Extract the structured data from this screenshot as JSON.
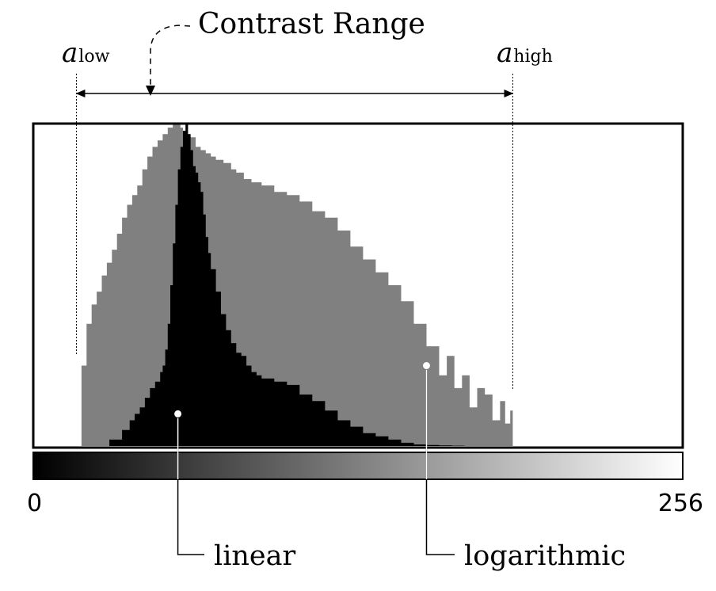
{
  "chart_data": {
    "type": "area",
    "title": "Contrast Range",
    "x_range": [
      0,
      256
    ],
    "xlabel": "",
    "ylabel": "",
    "tick_labels": [
      "0",
      "256"
    ],
    "range_labels": {
      "low": "a",
      "low_sub": "low",
      "high": "a",
      "high_sub": "high"
    },
    "contrast_range": {
      "a_low": 17,
      "a_high": 189
    },
    "grid": false,
    "colorbar": {
      "from": "#000000",
      "to": "#ffffff"
    },
    "series": [
      {
        "name": "logarithmic",
        "color": "#808080",
        "relative_to_max": true,
        "x": [
          17,
          19,
          21,
          23,
          25,
          27,
          29,
          31,
          33,
          35,
          37,
          39,
          41,
          43,
          45,
          47,
          49,
          51,
          53,
          55,
          57,
          58,
          59,
          60,
          62,
          64,
          66,
          68,
          70,
          72,
          75,
          78,
          80,
          83,
          86,
          90,
          95,
          100,
          105,
          110,
          115,
          120,
          125,
          130,
          135,
          140,
          145,
          150,
          155,
          160,
          163,
          166,
          169,
          172,
          175,
          178,
          181,
          184,
          186,
          188,
          189
        ],
        "y": [
          0,
          0.25,
          0.38,
          0.44,
          0.48,
          0.53,
          0.57,
          0.61,
          0.66,
          0.71,
          0.75,
          0.78,
          0.81,
          0.86,
          0.9,
          0.93,
          0.95,
          0.97,
          0.99,
          1.0,
          1.0,
          0.99,
          0.98,
          0.97,
          0.96,
          0.93,
          0.92,
          0.91,
          0.9,
          0.89,
          0.88,
          0.86,
          0.85,
          0.83,
          0.82,
          0.81,
          0.79,
          0.78,
          0.76,
          0.73,
          0.71,
          0.67,
          0.62,
          0.58,
          0.54,
          0.5,
          0.45,
          0.38,
          0.31,
          0.22,
          0.28,
          0.18,
          0.22,
          0.12,
          0.18,
          0.16,
          0.08,
          0.14,
          0.07,
          0.11,
          0.0
        ]
      },
      {
        "name": "linear",
        "color": "#000000",
        "relative_to_max": true,
        "x": [
          17,
          25,
          30,
          35,
          38,
          40,
          42,
          44,
          46,
          48,
          50,
          51,
          52,
          53,
          54,
          55,
          56,
          57,
          58,
          59,
          60,
          61,
          62,
          63,
          64,
          65,
          66,
          67,
          68,
          69,
          70,
          72,
          74,
          76,
          78,
          80,
          82,
          84,
          86,
          88,
          90,
          95,
          100,
          105,
          110,
          115,
          120,
          125,
          130,
          135,
          140,
          145,
          150,
          155,
          160,
          165,
          170,
          175,
          180,
          185,
          189
        ],
        "y": [
          0,
          0.0,
          0.02,
          0.05,
          0.08,
          0.1,
          0.12,
          0.15,
          0.18,
          0.2,
          0.23,
          0.25,
          0.3,
          0.38,
          0.5,
          0.63,
          0.75,
          0.86,
          0.93,
          0.98,
          1.0,
          0.97,
          0.92,
          0.87,
          0.85,
          0.82,
          0.79,
          0.72,
          0.65,
          0.6,
          0.55,
          0.48,
          0.41,
          0.36,
          0.32,
          0.29,
          0.28,
          0.25,
          0.23,
          0.22,
          0.21,
          0.2,
          0.19,
          0.16,
          0.14,
          0.11,
          0.08,
          0.06,
          0.04,
          0.03,
          0.02,
          0.01,
          0.005,
          0.003,
          0.002,
          0.001,
          0,
          0,
          0,
          0,
          0
        ]
      }
    ],
    "annotations": [
      {
        "text": "linear",
        "series": "linear",
        "point": [
          57,
          0.1
        ]
      },
      {
        "text": "logarithmic",
        "series": "logarithmic",
        "point": [
          155,
          0.25
        ]
      }
    ]
  }
}
